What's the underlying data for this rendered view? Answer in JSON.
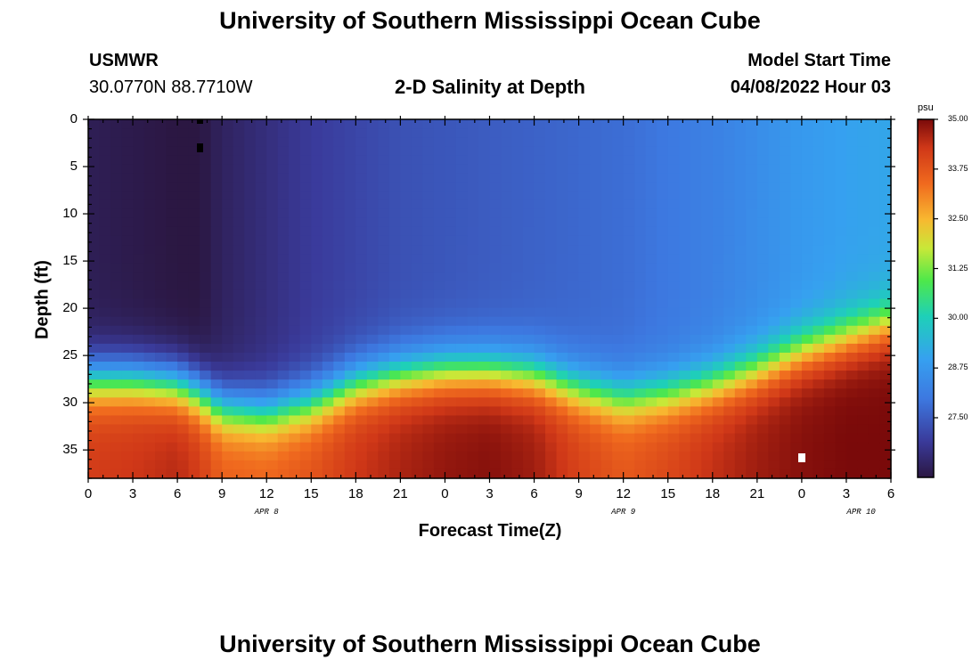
{
  "page": {
    "title": "University of Southern Mississippi Ocean Cube",
    "footer_title": "University of Southern Mississippi Ocean Cube",
    "station": "USMWR",
    "coords": "30.0770N  88.7710W",
    "model_label": "Model Start Time",
    "model_time": "04/08/2022 Hour 03"
  },
  "chart_data": {
    "type": "heatmap",
    "title": "2-D Salinity at Depth",
    "xlabel": "Forecast Time(Z)",
    "ylabel": "Depth (ft)",
    "colorbar_unit": "psu",
    "x_ticks": [
      "0",
      "3",
      "6",
      "9",
      "12",
      "15",
      "18",
      "21",
      "0",
      "3",
      "6",
      "9",
      "12",
      "15",
      "18",
      "21",
      "0",
      "3",
      "6"
    ],
    "y_ticks": [
      "0",
      "5",
      "10",
      "15",
      "20",
      "25",
      "30",
      "35"
    ],
    "y_tick_values": [
      0,
      5,
      10,
      15,
      20,
      25,
      30,
      35
    ],
    "ylim": [
      0,
      38
    ],
    "xlim_hours": [
      0,
      54
    ],
    "date_labels": [
      {
        "text": "APR 8",
        "hour": 12
      },
      {
        "text": "APR 9",
        "hour": 36
      },
      {
        "text": "APR 10",
        "hour": 52
      }
    ],
    "colorbar_ticks": [
      "35.00",
      "33.75",
      "32.50",
      "31.25",
      "30.00",
      "28.75",
      "27.50"
    ],
    "colorbar_values": [
      35.0,
      33.75,
      32.5,
      31.25,
      30.0,
      28.75,
      27.5
    ],
    "color_range": [
      26.0,
      35.0
    ],
    "depth_profile_hours": [
      0,
      3,
      6,
      7.5,
      9,
      12,
      15,
      18,
      21,
      24,
      27,
      30,
      33,
      36,
      39,
      42,
      45,
      48,
      51,
      54
    ],
    "halocline_depth_ft": [
      27.5,
      27.5,
      28,
      29,
      30.5,
      31,
      30,
      28,
      27,
      26.5,
      26.5,
      27,
      28.5,
      29.5,
      29,
      28,
      26.5,
      24.5,
      23,
      21.5
    ],
    "surface_salinity_psu": [
      26.2,
      26.1,
      26.0,
      26.0,
      26.3,
      26.6,
      26.9,
      27.1,
      27.3,
      27.4,
      27.5,
      27.6,
      27.7,
      27.8,
      28.0,
      28.2,
      28.5,
      28.8,
      29.0,
      29.1
    ],
    "bottom_salinity_psu": [
      34.2,
      34.3,
      34.5,
      34.2,
      33.6,
      33.5,
      33.8,
      34.3,
      34.6,
      34.8,
      34.9,
      34.7,
      34.1,
      33.7,
      34.0,
      34.4,
      34.7,
      34.9,
      35.0,
      35.0
    ]
  }
}
